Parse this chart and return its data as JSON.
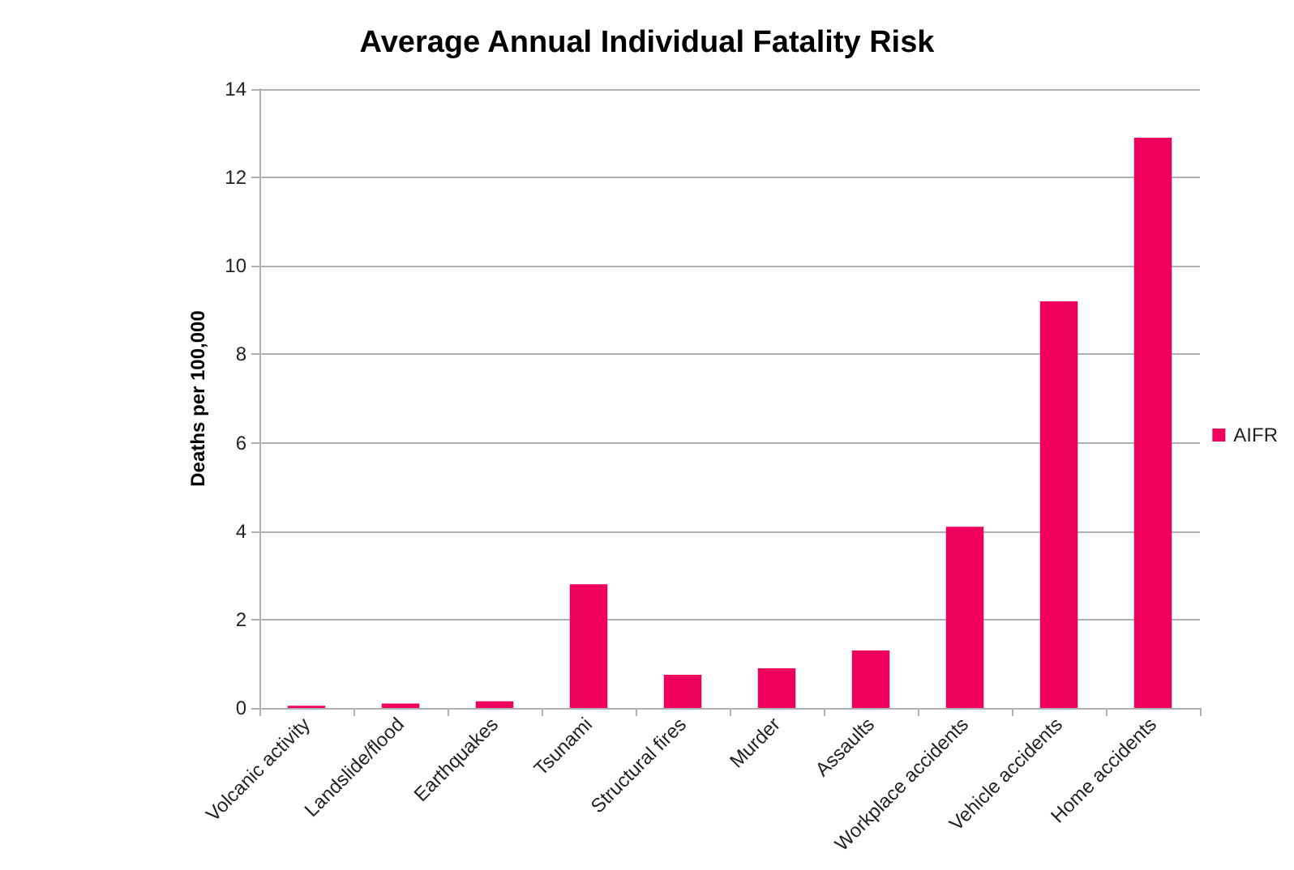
{
  "chart_data": {
    "type": "bar",
    "title": "Average Annual Individual Fatality Risk",
    "ylabel": "Deaths per 100,000",
    "categories": [
      "Volcanic activity",
      "Landslide/flood",
      "Earthquakes",
      "Tsunami",
      "Structural fires",
      "Murder",
      "Assaults",
      "Workplace accidents",
      "Vehicle accidents",
      "Home accidents"
    ],
    "series": [
      {
        "name": "AIFR",
        "color": "#f0005c",
        "values": [
          0.05,
          0.1,
          0.15,
          2.8,
          0.75,
          0.9,
          1.3,
          4.1,
          9.2,
          12.9
        ]
      }
    ],
    "ylim": [
      0,
      14
    ],
    "yticks": [
      0,
      2,
      4,
      6,
      8,
      10,
      12,
      14
    ],
    "grid": "y",
    "legend": "right"
  }
}
